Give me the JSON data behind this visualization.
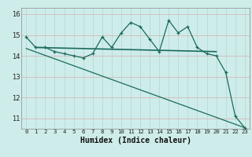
{
  "xlabel": "Humidex (Indice chaleur)",
  "bg_color": "#ceecea",
  "grid_color": "#aed8d4",
  "line_color": "#1a6b5a",
  "x_data": [
    0,
    1,
    2,
    3,
    4,
    5,
    6,
    7,
    8,
    9,
    10,
    11,
    12,
    13,
    14,
    15,
    16,
    17,
    18,
    19,
    20,
    21,
    22,
    23
  ],
  "y_jagged": [
    14.9,
    14.4,
    14.4,
    14.2,
    14.1,
    14.0,
    13.9,
    14.1,
    14.9,
    14.4,
    15.1,
    15.6,
    15.4,
    14.8,
    14.2,
    15.7,
    15.1,
    15.4,
    14.4,
    14.1,
    14.0,
    13.2,
    11.1,
    10.55
  ],
  "flat_line_x": [
    1,
    20
  ],
  "flat_line_y": [
    14.4,
    14.2
  ],
  "diag_line_x": [
    0,
    23
  ],
  "diag_line_y": [
    14.35,
    10.55
  ],
  "xlim": [
    -0.5,
    23.5
  ],
  "ylim": [
    10.5,
    16.3
  ],
  "yticks": [
    11,
    12,
    13,
    14,
    15,
    16
  ],
  "xticks": [
    0,
    1,
    2,
    3,
    4,
    5,
    6,
    7,
    8,
    9,
    10,
    11,
    12,
    13,
    14,
    15,
    16,
    17,
    18,
    19,
    20,
    21,
    22,
    23
  ]
}
